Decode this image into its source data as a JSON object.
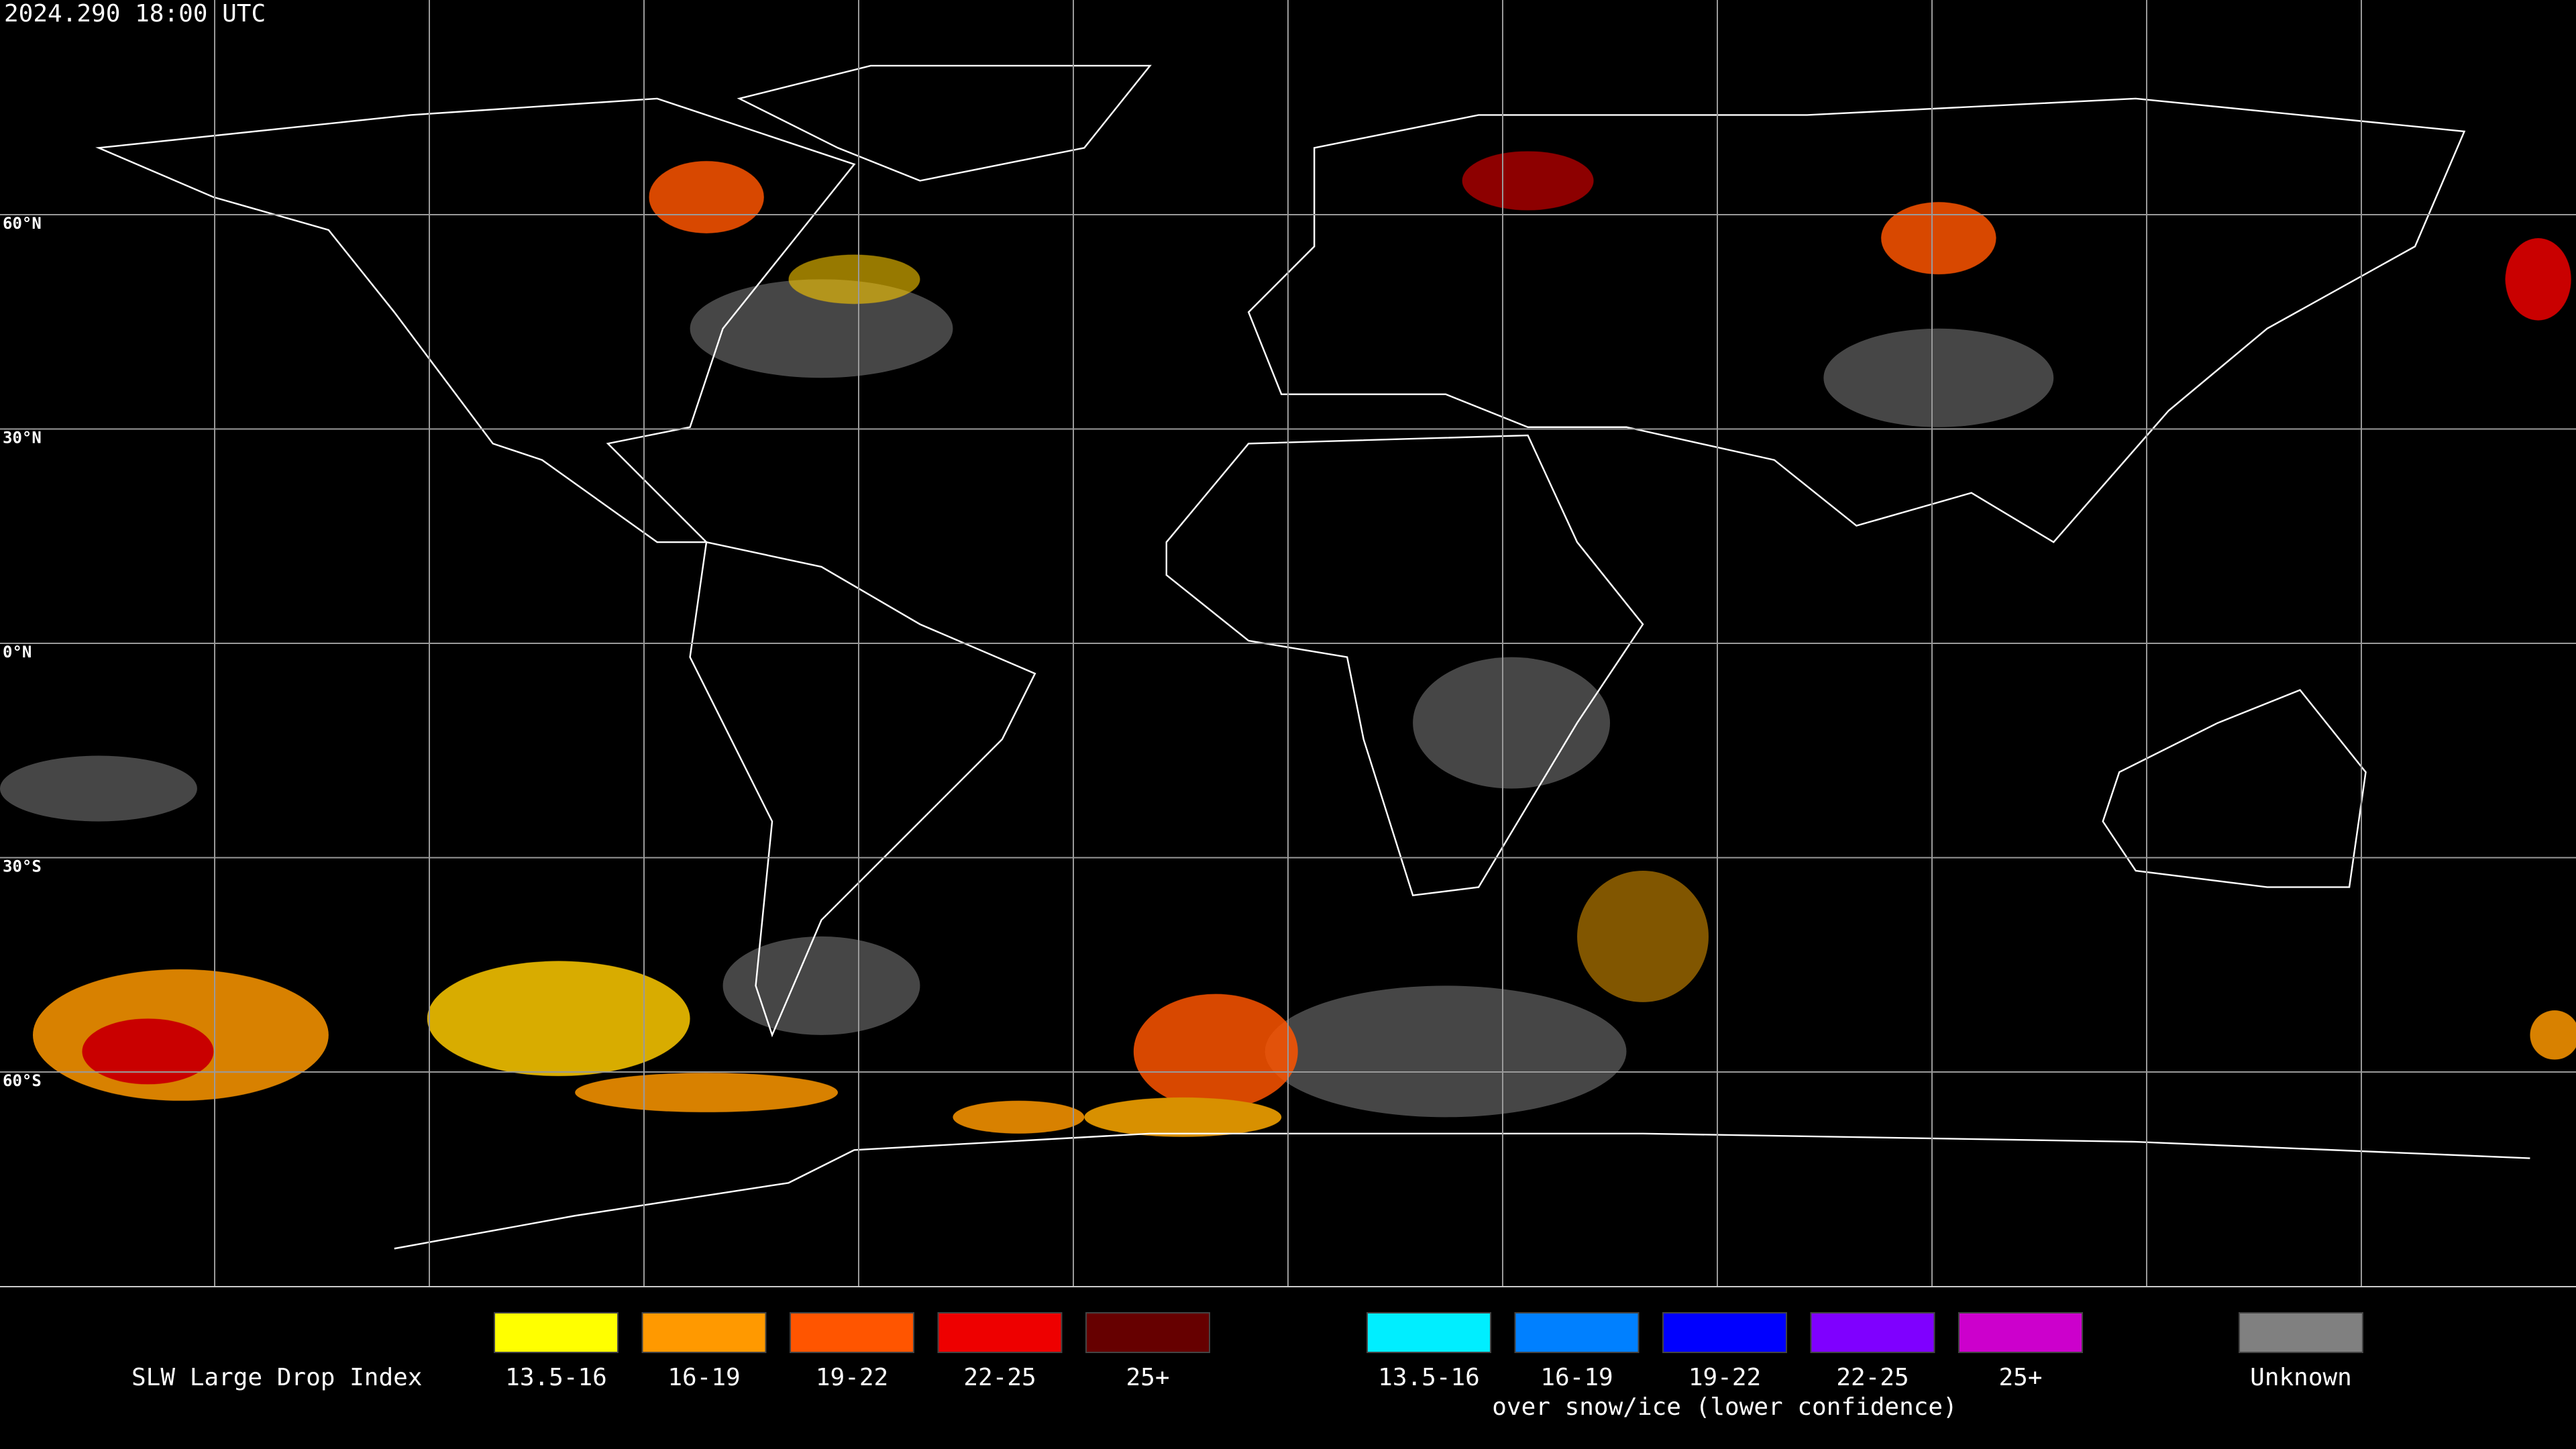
{
  "timestamp": "2024.290 18:00 UTC",
  "grid_labels": [
    "60°N",
    "30°N",
    "0°N",
    "30°S",
    "60°S"
  ],
  "legend": {
    "title": "SLW Large Drop Index",
    "groups": [
      {
        "items": [
          {
            "label": "13.5-16",
            "color": "#ffff00"
          },
          {
            "label": "16-19",
            "color": "#ff9900"
          },
          {
            "label": "19-22",
            "color": "#ff5500"
          },
          {
            "label": "22-25",
            "color": "#ee0000"
          },
          {
            "label": "25+",
            "color": "#660000"
          }
        ]
      },
      {
        "items": [
          {
            "label": "13.5-16",
            "color": "#00eeff"
          },
          {
            "label": "16-19",
            "color": "#0080ff"
          },
          {
            "label": "19-22",
            "color": "#0000ff"
          },
          {
            "label": "22-25",
            "color": "#7f00ff"
          },
          {
            "label": "25+",
            "color": "#cc00cc"
          }
        ],
        "caption": "over snow/ice (lower confidence)"
      },
      {
        "items": [
          {
            "label": "Unknown",
            "color": "#808080"
          }
        ]
      }
    ]
  }
}
